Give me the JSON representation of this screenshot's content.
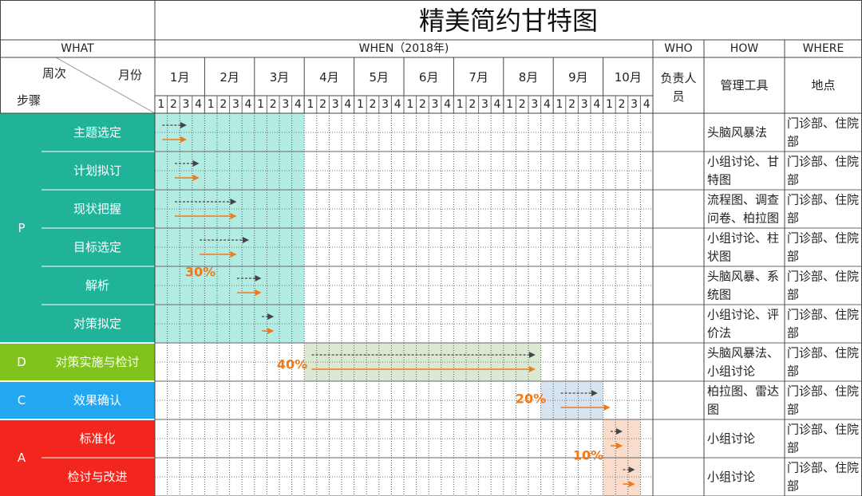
{
  "title": "精美简约甘特图",
  "header": {
    "what": "WHAT",
    "when": "WHEN（2018年)",
    "who": "WHO",
    "how": "HOW",
    "where": "WHERE",
    "week_label": "周次",
    "month_label": "月份",
    "step_label": "步骤",
    "responsible": "负责人员",
    "tools": "管理工具",
    "location": "地点"
  },
  "months": [
    "1月",
    "2月",
    "3月",
    "4月",
    "5月",
    "6月",
    "7月",
    "8月",
    "9月",
    "10月"
  ],
  "weeks": [
    "1",
    "2",
    "3",
    "4"
  ],
  "phases": [
    {
      "code": "P",
      "color": "#20b39a",
      "rows": [
        0,
        5
      ]
    },
    {
      "code": "D",
      "color": "#7fc31c",
      "rows": [
        6,
        6
      ]
    },
    {
      "code": "C",
      "color": "#22a7f0",
      "rows": [
        7,
        7
      ]
    },
    {
      "code": "A",
      "color": "#f2261c",
      "rows": [
        8,
        9
      ]
    }
  ],
  "tasks": [
    {
      "name": "主题选定",
      "tools": "头脑风暴法",
      "where": "门诊部、住院部",
      "plan": [
        1,
        3
      ],
      "actual": [
        1,
        3
      ]
    },
    {
      "name": "计划拟订",
      "tools": "小组讨论、甘特图",
      "where": "门诊部、住院部",
      "plan": [
        2,
        4
      ],
      "actual": [
        2,
        4
      ]
    },
    {
      "name": "现状把握",
      "tools": "流程图、调查问卷、柏拉图",
      "where": "门诊部、住院部",
      "plan": [
        2,
        7
      ],
      "actual": [
        2,
        7
      ]
    },
    {
      "name": "目标选定",
      "tools": "小组讨论、柱状图",
      "where": "门诊部、住院部",
      "plan": [
        4,
        8
      ],
      "actual": [
        4,
        7
      ]
    },
    {
      "name": "解析",
      "tools": "头脑风暴、系统图",
      "where": "门诊部、住院部",
      "plan": [
        7,
        9
      ],
      "actual": [
        7,
        9
      ]
    },
    {
      "name": "对策拟定",
      "tools": "小组讨论、评价法",
      "where": "门诊部、住院部",
      "plan": [
        9,
        10
      ],
      "actual": [
        9,
        10
      ]
    },
    {
      "name": "对策实施与检讨",
      "tools": "头脑风暴法、小组讨论",
      "where": "门诊部、住院部",
      "plan": [
        13,
        31
      ],
      "actual": [
        13,
        31
      ]
    },
    {
      "name": "效果确认",
      "tools": "柏拉图、雷达图",
      "where": "门诊部、住院部",
      "plan": [
        33,
        36
      ],
      "actual": [
        33,
        37
      ]
    },
    {
      "name": "标准化",
      "tools": "小组讨论",
      "where": "门诊部、住院部",
      "plan": [
        37,
        38
      ],
      "actual": [
        37,
        38
      ]
    },
    {
      "name": "检讨与改进",
      "tools": "小组讨论",
      "where": "门诊部、住院部",
      "plan": [
        38,
        39
      ],
      "actual": [
        38,
        39
      ]
    }
  ],
  "highlights": [
    {
      "weeks": [
        1,
        12
      ],
      "rows": [
        0,
        5
      ],
      "color": "#b3ece2",
      "percent": "30%"
    },
    {
      "weeks": [
        13,
        31
      ],
      "rows": [
        6,
        6
      ],
      "color": "#dbe9d2",
      "percent": "40%"
    },
    {
      "weeks": [
        32,
        36
      ],
      "rows": [
        7,
        7
      ],
      "color": "#d6e3f0",
      "percent": "20%"
    },
    {
      "weeks": [
        37,
        39
      ],
      "rows": [
        8,
        9
      ],
      "color": "#f9dccc",
      "percent": "10%"
    }
  ],
  "colors": {
    "plan_arrow": "#444444",
    "actual_arrow": "#f07a1a",
    "percent": "#f07a1a",
    "grid": "#555555"
  }
}
